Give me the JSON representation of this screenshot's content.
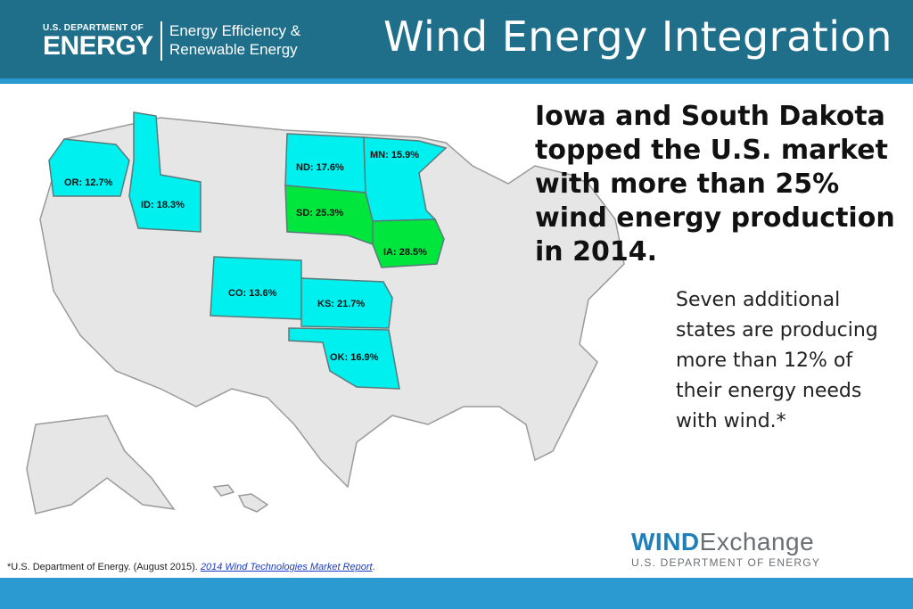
{
  "header": {
    "agency_small": "U.S. DEPARTMENT OF",
    "agency_big": "ENERGY",
    "office_line1": "Energy Efficiency &",
    "office_line2": "Renewable Energy",
    "title": "Wind Energy Integration"
  },
  "headline": "Iowa and South Dakota topped the U.S. market with more than 25% wind energy production in 2014.",
  "subtext": "Seven additional states are producing more than 12% of their energy needs with wind.*",
  "map": {
    "colors": {
      "over_25": "#00e63d",
      "over_12": "#00f0f0",
      "base": "#e6e6e6",
      "border": "#9a9a9a"
    },
    "states": [
      {
        "code": "OR",
        "label": "OR: 12.7%",
        "share_pct": 12.7,
        "tier": "over_12"
      },
      {
        "code": "ID",
        "label": "ID: 18.3%",
        "share_pct": 18.3,
        "tier": "over_12"
      },
      {
        "code": "ND",
        "label": "ND: 17.6%",
        "share_pct": 17.6,
        "tier": "over_12"
      },
      {
        "code": "MN",
        "label": "MN: 15.9%",
        "share_pct": 15.9,
        "tier": "over_12"
      },
      {
        "code": "SD",
        "label": "SD: 25.3%",
        "share_pct": 25.3,
        "tier": "over_25"
      },
      {
        "code": "IA",
        "label": "IA: 28.5%",
        "share_pct": 28.5,
        "tier": "over_25"
      },
      {
        "code": "CO",
        "label": "CO: 13.6%",
        "share_pct": 13.6,
        "tier": "over_12"
      },
      {
        "code": "KS",
        "label": "KS: 21.7%",
        "share_pct": 21.7,
        "tier": "over_12"
      },
      {
        "code": "OK",
        "label": "OK: 16.9%",
        "share_pct": 16.9,
        "tier": "over_12"
      }
    ]
  },
  "footnote": {
    "prefix": "*U.S. Department of Energy. (August 2015). ",
    "link_text": "2014 Wind Technologies Market Report",
    "suffix": "."
  },
  "brand": {
    "wind": "WIND",
    "exchange": "Exchange",
    "sub": "U.S. DEPARTMENT OF ENERGY"
  }
}
